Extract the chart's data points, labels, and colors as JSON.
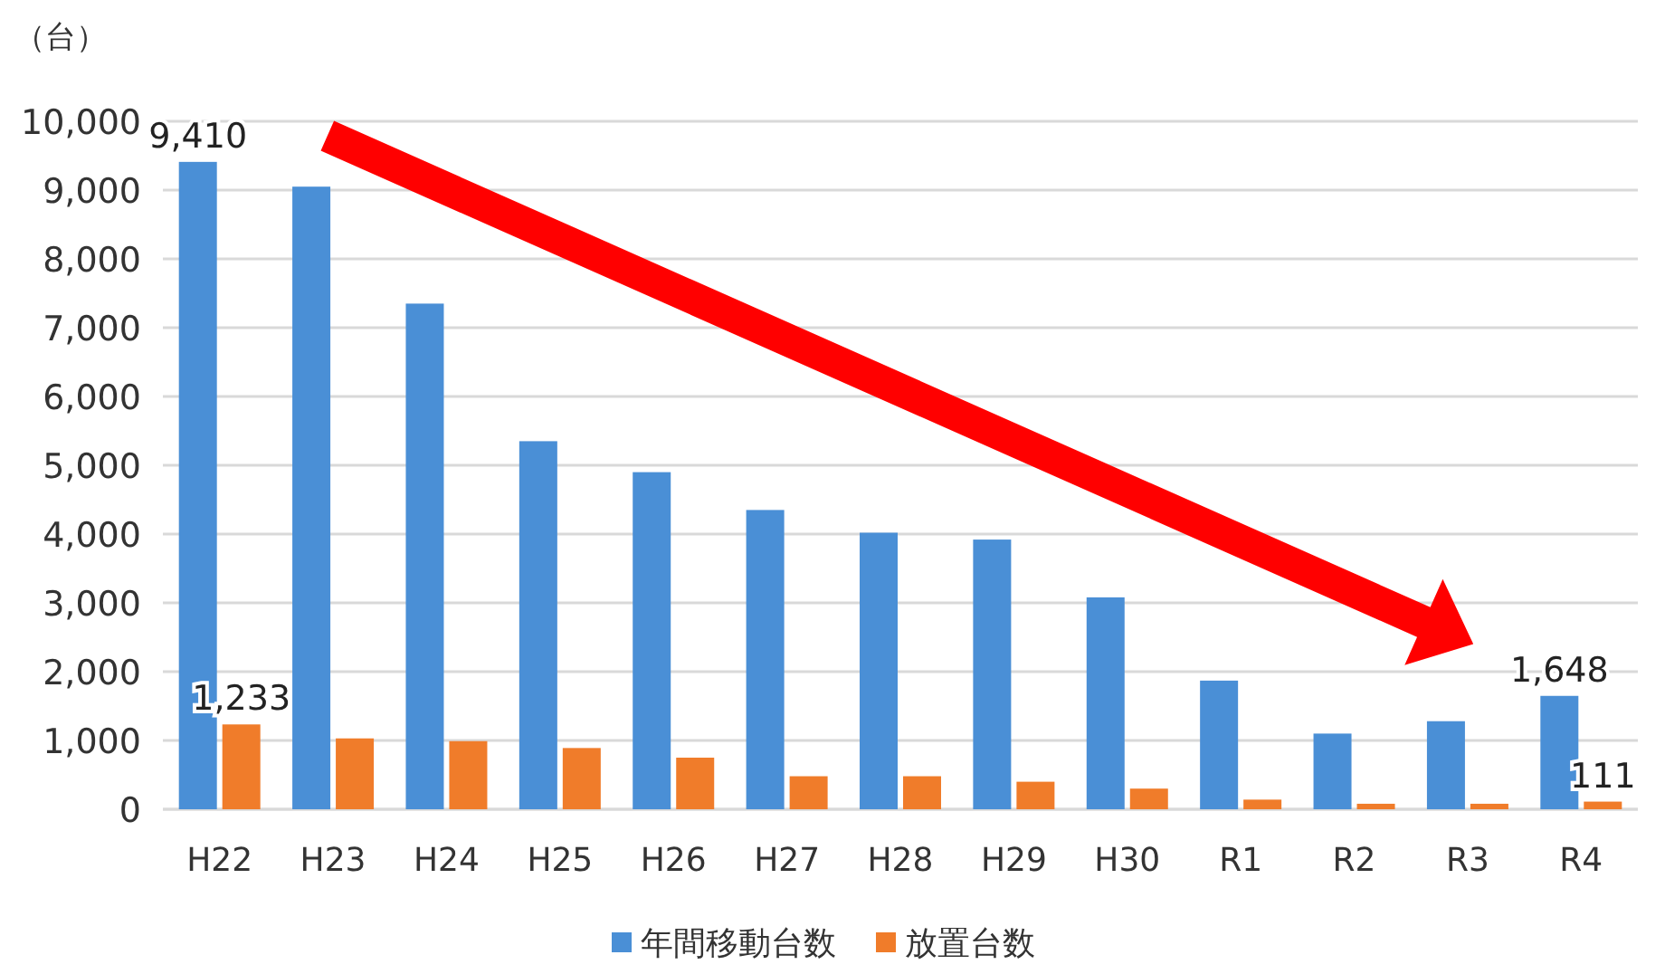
{
  "chart_data": {
    "type": "bar",
    "ylabel": "（台）",
    "categories": [
      "H22",
      "H23",
      "H24",
      "H25",
      "H26",
      "H27",
      "H28",
      "H29",
      "H30",
      "R1",
      "R2",
      "R3",
      "R4"
    ],
    "series": [
      {
        "name": "年間移動台数",
        "color": "#4a8fd6",
        "values": [
          9410,
          9050,
          7350,
          5350,
          4900,
          4350,
          4020,
          3920,
          3080,
          1870,
          1100,
          1280,
          1648
        ],
        "value_labels": [
          "9,410",
          null,
          null,
          null,
          null,
          null,
          null,
          null,
          null,
          null,
          null,
          null,
          "1,648"
        ]
      },
      {
        "name": "放置台数",
        "color": "#f07c2a",
        "values": [
          1233,
          1030,
          990,
          890,
          750,
          480,
          480,
          400,
          300,
          140,
          80,
          80,
          111
        ],
        "value_labels": [
          "1,233",
          null,
          null,
          null,
          null,
          null,
          null,
          null,
          null,
          null,
          null,
          null,
          "111"
        ]
      }
    ],
    "ylim": [
      0,
      10000
    ],
    "yticks": [
      {
        "value": 0,
        "label": "0"
      },
      {
        "value": 1000,
        "label": "1,000"
      },
      {
        "value": 2000,
        "label": "2,000"
      },
      {
        "value": 3000,
        "label": "3,000"
      },
      {
        "value": 4000,
        "label": "4,000"
      },
      {
        "value": 5000,
        "label": "5,000"
      },
      {
        "value": 6000,
        "label": "6,000"
      },
      {
        "value": 7000,
        "label": "7,000"
      },
      {
        "value": 8000,
        "label": "8,000"
      },
      {
        "value": 9000,
        "label": "9,000"
      },
      {
        "value": 10000,
        "label": "10,000"
      }
    ],
    "grid": "y",
    "legend": "bottom"
  }
}
